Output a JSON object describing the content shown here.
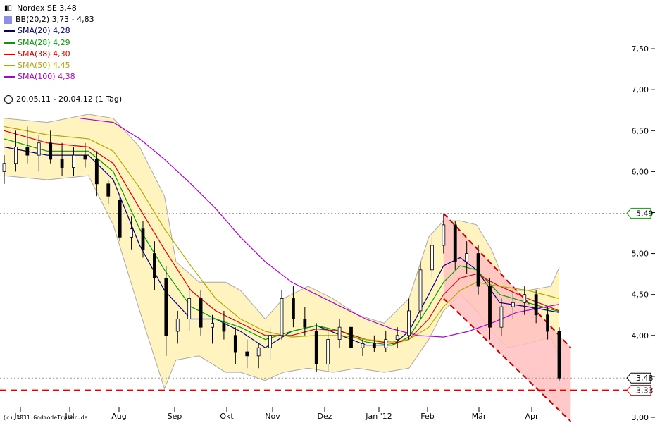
{
  "legend": {
    "title": "Nordex SE 3,48",
    "items": [
      {
        "label": "BB(20,2) 3,73 - 4,83",
        "color": "#8e8ee8",
        "kind": "box"
      },
      {
        "label": "SMA(20) 4,28",
        "color": "#000080",
        "kind": "line"
      },
      {
        "label": "SMA(28) 4,29",
        "color": "#00a000",
        "kind": "line"
      },
      {
        "label": "SMA(38) 4,30",
        "color": "#e00000",
        "kind": "line"
      },
      {
        "label": "SMA(50) 4,45",
        "color": "#b0a800",
        "kind": "line"
      },
      {
        "label": "SMA(100) 4,38",
        "color": "#b000d0",
        "kind": "line"
      }
    ]
  },
  "period": "20.05.11 - 20.04.12 (1 Tag)",
  "copyright": "(c) 2011 GodmodeTrader.de",
  "colors": {
    "bollinger_fill": "#fff4c0",
    "bollinger_edge": "#a8a8a8",
    "channel_fill": "#ffc0c0",
    "channel_line": "#c00000",
    "support_line": "#e00000",
    "candles": "#000000"
  },
  "chart_data": {
    "type": "line",
    "ylim": [
      3.0,
      7.75
    ],
    "yticks": [
      "7,50",
      "7,00",
      "6,50",
      "6,00",
      "5,50",
      "5,00",
      "4,50",
      "4,00",
      "3,50",
      "3,00"
    ],
    "xticks": [
      "Jun",
      "Jul",
      "Aug",
      "Sep",
      "Okt",
      "Nov",
      "Dez",
      "Jan '12",
      "Feb",
      "Mär",
      "Apr"
    ],
    "price_markers": [
      {
        "label": "5,49",
        "value": 5.49,
        "style": "dotted-grey",
        "box_color": "#00a000"
      },
      {
        "label": "3,48",
        "value": 3.48,
        "style": "dotted-grey",
        "box_color": "#000000"
      },
      {
        "label": "3,33",
        "value": 3.33,
        "style": "dashed-red",
        "box_color": "#e00000"
      }
    ],
    "series": [
      {
        "name": "SMA(20) 4,28",
        "x": [
          "2011-05-20",
          "2011-06-15",
          "2011-07-10",
          "2011-07-25",
          "2011-08-10",
          "2011-08-25",
          "2011-09-10",
          "2011-09-25",
          "2011-10-10",
          "2011-10-25",
          "2011-11-10",
          "2011-11-25",
          "2011-12-10",
          "2011-12-25",
          "2012-01-10",
          "2012-01-20",
          "2012-02-01",
          "2012-02-10",
          "2012-02-20",
          "2012-03-01",
          "2012-03-15",
          "2012-04-01",
          "2012-04-20"
        ],
        "y": [
          6.3,
          6.2,
          6.2,
          5.9,
          5.1,
          4.55,
          4.2,
          4.2,
          4.05,
          3.85,
          4.05,
          4.12,
          4.0,
          3.88,
          3.88,
          4.05,
          4.5,
          4.85,
          4.95,
          4.8,
          4.4,
          4.35,
          4.28
        ]
      },
      {
        "name": "SMA(28) 4,29",
        "x": [
          "2011-05-20",
          "2011-06-15",
          "2011-07-10",
          "2011-07-25",
          "2011-08-10",
          "2011-08-25",
          "2011-09-10",
          "2011-09-25",
          "2011-10-10",
          "2011-10-25",
          "2011-11-10",
          "2011-11-25",
          "2011-12-10",
          "2011-12-25",
          "2012-01-10",
          "2012-01-20",
          "2012-02-01",
          "2012-02-10",
          "2012-02-20",
          "2012-03-01",
          "2012-03-15",
          "2012-04-01",
          "2012-04-20"
        ],
        "y": [
          6.4,
          6.25,
          6.25,
          6.0,
          5.3,
          4.8,
          4.35,
          4.2,
          4.1,
          3.95,
          4.05,
          4.12,
          4.05,
          3.92,
          3.88,
          3.98,
          4.35,
          4.65,
          4.85,
          4.8,
          4.5,
          4.4,
          4.29
        ]
      },
      {
        "name": "SMA(38) 4,30",
        "x": [
          "2011-05-20",
          "2011-06-15",
          "2011-07-10",
          "2011-07-25",
          "2011-08-10",
          "2011-08-25",
          "2011-09-10",
          "2011-09-25",
          "2011-10-10",
          "2011-10-25",
          "2011-11-10",
          "2011-11-25",
          "2011-12-10",
          "2011-12-25",
          "2012-01-10",
          "2012-01-20",
          "2012-02-01",
          "2012-02-10",
          "2012-02-20",
          "2012-03-01",
          "2012-03-15",
          "2012-04-01",
          "2012-04-20"
        ],
        "y": [
          6.5,
          6.35,
          6.3,
          6.1,
          5.55,
          5.05,
          4.55,
          4.3,
          4.15,
          4.0,
          4.0,
          4.08,
          4.05,
          3.95,
          3.9,
          3.95,
          4.2,
          4.5,
          4.7,
          4.75,
          4.6,
          4.45,
          4.3
        ]
      },
      {
        "name": "SMA(50) 4,45",
        "x": [
          "2011-05-20",
          "2011-06-15",
          "2011-07-10",
          "2011-07-25",
          "2011-08-10",
          "2011-08-25",
          "2011-09-10",
          "2011-09-25",
          "2011-10-10",
          "2011-10-25",
          "2011-11-10",
          "2011-11-25",
          "2011-12-10",
          "2011-12-25",
          "2012-01-10",
          "2012-01-20",
          "2012-02-01",
          "2012-02-10",
          "2012-02-20",
          "2012-03-01",
          "2012-03-15",
          "2012-04-01",
          "2012-04-20"
        ],
        "y": [
          6.55,
          6.45,
          6.4,
          6.25,
          5.8,
          5.3,
          4.85,
          4.45,
          4.2,
          4.05,
          3.98,
          4.0,
          4.0,
          3.95,
          3.92,
          3.95,
          4.1,
          4.35,
          4.55,
          4.65,
          4.6,
          4.55,
          4.45
        ]
      },
      {
        "name": "SMA(100) 4,38",
        "x": [
          "2011-07-05",
          "2011-07-25",
          "2011-08-10",
          "2011-08-25",
          "2011-09-10",
          "2011-09-25",
          "2011-10-10",
          "2011-10-25",
          "2011-11-10",
          "2011-11-25",
          "2011-12-10",
          "2011-12-25",
          "2012-01-10",
          "2012-01-25",
          "2012-02-10",
          "2012-02-25",
          "2012-03-10",
          "2012-03-25",
          "2012-04-20"
        ],
        "y": [
          6.65,
          6.6,
          6.4,
          6.15,
          5.85,
          5.55,
          5.2,
          4.9,
          4.65,
          4.5,
          4.35,
          4.2,
          4.08,
          4.0,
          3.98,
          4.05,
          4.15,
          4.28,
          4.38
        ]
      },
      {
        "name": "BB(20,2) 3,73 - 4,83",
        "role": "upper",
        "x": [
          "2011-05-20",
          "2011-06-15",
          "2011-07-10",
          "2011-07-25",
          "2011-08-10",
          "2011-08-25",
          "2011-09-01",
          "2011-09-15",
          "2011-10-01",
          "2011-10-10",
          "2011-10-25",
          "2011-11-05",
          "2011-11-20",
          "2011-12-05",
          "2011-12-20",
          "2012-01-05",
          "2012-01-20",
          "2012-02-01",
          "2012-02-10",
          "2012-02-20",
          "2012-03-01",
          "2012-03-10",
          "2012-03-20",
          "2012-04-01",
          "2012-04-15",
          "2012-04-20"
        ],
        "y": [
          6.65,
          6.6,
          6.7,
          6.65,
          6.3,
          5.7,
          4.9,
          4.65,
          4.65,
          4.55,
          4.2,
          4.45,
          4.6,
          4.45,
          4.25,
          4.15,
          4.45,
          5.2,
          5.4,
          5.4,
          5.35,
          5.05,
          4.55,
          4.55,
          4.6,
          4.83
        ]
      },
      {
        "name": "BB(20,2) 3,73 - 4,83",
        "role": "lower",
        "x": [
          "2011-05-20",
          "2011-06-15",
          "2011-07-10",
          "2011-07-25",
          "2011-08-10",
          "2011-08-25",
          "2011-09-01",
          "2011-09-15",
          "2011-10-01",
          "2011-10-10",
          "2011-10-25",
          "2011-11-05",
          "2011-11-20",
          "2011-12-05",
          "2011-12-20",
          "2012-01-05",
          "2012-01-20",
          "2012-02-01",
          "2012-02-10",
          "2012-02-20",
          "2012-03-01",
          "2012-03-10",
          "2012-03-20",
          "2012-04-01",
          "2012-04-15",
          "2012-04-20"
        ],
        "y": [
          5.95,
          5.9,
          5.95,
          5.35,
          4.3,
          3.35,
          3.7,
          3.75,
          3.55,
          3.55,
          3.45,
          3.55,
          3.6,
          3.55,
          3.6,
          3.55,
          3.6,
          3.95,
          4.3,
          4.5,
          4.3,
          4.05,
          3.85,
          3.9,
          3.98,
          3.73
        ]
      }
    ],
    "candles": [
      [
        "2011-05-20",
        6.0,
        6.2,
        5.85,
        6.1
      ],
      [
        "2011-05-27",
        6.1,
        6.5,
        6.0,
        6.3
      ],
      [
        "2011-06-03",
        6.3,
        6.55,
        6.1,
        6.2
      ],
      [
        "2011-06-10",
        6.2,
        6.45,
        6.0,
        6.35
      ],
      [
        "2011-06-17",
        6.35,
        6.5,
        6.1,
        6.15
      ],
      [
        "2011-06-24",
        6.15,
        6.35,
        5.95,
        6.05
      ],
      [
        "2011-07-01",
        6.05,
        6.3,
        5.95,
        6.2
      ],
      [
        "2011-07-08",
        6.2,
        6.35,
        6.05,
        6.15
      ],
      [
        "2011-07-15",
        6.15,
        6.25,
        5.7,
        5.85
      ],
      [
        "2011-07-22",
        5.85,
        5.9,
        5.6,
        5.7
      ],
      [
        "2011-07-29",
        5.65,
        5.7,
        5.15,
        5.2
      ],
      [
        "2011-08-05",
        5.2,
        5.45,
        5.05,
        5.3
      ],
      [
        "2011-08-12",
        5.3,
        5.4,
        4.95,
        5.05
      ],
      [
        "2011-08-19",
        5.0,
        5.15,
        4.55,
        4.7
      ],
      [
        "2011-08-26",
        4.7,
        4.85,
        3.75,
        4.0
      ],
      [
        "2011-09-02",
        4.05,
        4.3,
        3.9,
        4.2
      ],
      [
        "2011-09-09",
        4.2,
        4.6,
        4.05,
        4.45
      ],
      [
        "2011-09-16",
        4.45,
        4.55,
        4.0,
        4.1
      ],
      [
        "2011-09-23",
        4.1,
        4.25,
        3.9,
        4.15
      ],
      [
        "2011-09-30",
        4.15,
        4.3,
        3.95,
        4.05
      ],
      [
        "2011-10-07",
        4.0,
        4.1,
        3.65,
        3.8
      ],
      [
        "2011-10-14",
        3.8,
        3.95,
        3.6,
        3.75
      ],
      [
        "2011-10-21",
        3.75,
        3.9,
        3.6,
        3.85
      ],
      [
        "2011-10-28",
        3.85,
        4.1,
        3.7,
        4.0
      ],
      [
        "2011-11-04",
        4.0,
        4.55,
        3.95,
        4.45
      ],
      [
        "2011-11-11",
        4.45,
        4.6,
        4.1,
        4.2
      ],
      [
        "2011-11-18",
        4.2,
        4.35,
        4.0,
        4.1
      ],
      [
        "2011-11-25",
        4.05,
        4.15,
        3.55,
        3.65
      ],
      [
        "2011-12-02",
        3.65,
        4.05,
        3.55,
        3.95
      ],
      [
        "2011-12-09",
        3.95,
        4.2,
        3.85,
        4.1
      ],
      [
        "2011-12-16",
        4.1,
        4.15,
        3.75,
        3.85
      ],
      [
        "2011-12-23",
        3.85,
        3.95,
        3.75,
        3.9
      ],
      [
        "2011-12-30",
        3.9,
        4.0,
        3.8,
        3.85
      ],
      [
        "2012-01-06",
        3.85,
        4.05,
        3.8,
        3.95
      ],
      [
        "2012-01-13",
        3.95,
        4.1,
        3.85,
        4.0
      ],
      [
        "2012-01-20",
        4.0,
        4.45,
        3.95,
        4.3
      ],
      [
        "2012-01-27",
        4.3,
        4.9,
        4.2,
        4.8
      ],
      [
        "2012-02-03",
        4.8,
        5.2,
        4.7,
        5.1
      ],
      [
        "2012-02-10",
        5.1,
        5.49,
        5.0,
        5.35
      ],
      [
        "2012-02-17",
        5.35,
        5.4,
        4.8,
        4.9
      ],
      [
        "2012-02-24",
        4.9,
        5.15,
        4.75,
        5.0
      ],
      [
        "2012-03-02",
        5.0,
        5.1,
        4.5,
        4.6
      ],
      [
        "2012-03-09",
        4.6,
        4.7,
        3.95,
        4.1
      ],
      [
        "2012-03-16",
        4.1,
        4.45,
        4.0,
        4.35
      ],
      [
        "2012-03-23",
        4.35,
        4.55,
        4.2,
        4.4
      ],
      [
        "2012-03-30",
        4.4,
        4.6,
        4.25,
        4.5
      ],
      [
        "2012-04-06",
        4.5,
        4.55,
        4.15,
        4.25
      ],
      [
        "2012-04-13",
        4.25,
        4.35,
        3.95,
        4.05
      ],
      [
        "2012-04-20",
        4.05,
        4.1,
        3.45,
        3.48
      ]
    ],
    "channel": {
      "upper": [
        [
          "2012-02-10",
          5.49
        ],
        [
          "2012-04-27",
          3.85
        ]
      ],
      "lower": [
        [
          "2012-02-10",
          4.45
        ],
        [
          "2012-04-27",
          2.95
        ]
      ]
    }
  }
}
